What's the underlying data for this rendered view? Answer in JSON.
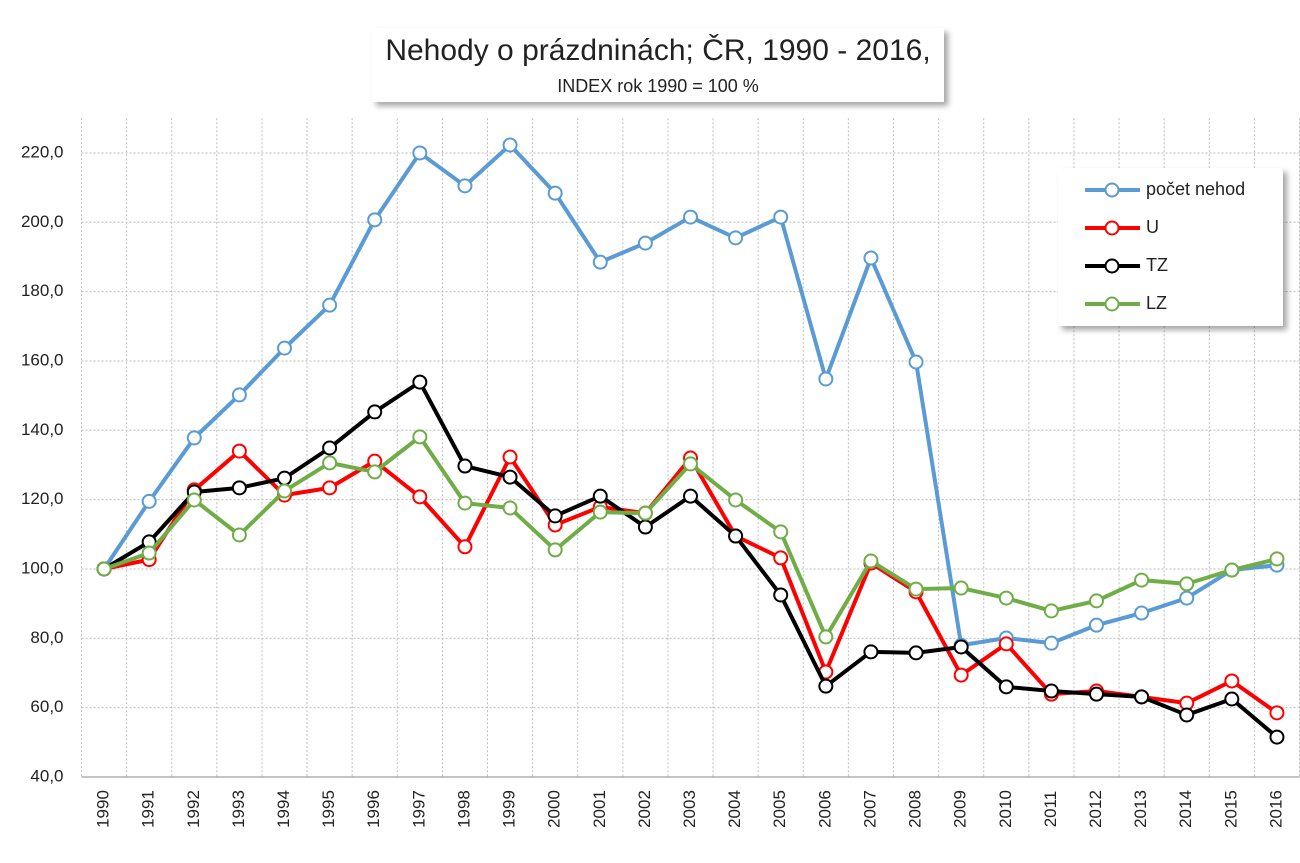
{
  "chart_data": {
    "type": "line",
    "title": "Nehody o prázdninách; ČR, 1990 - 2016,",
    "subtitle": "INDEX rok 1990 = 100 %",
    "categories": [
      "1990",
      "1991",
      "1992",
      "1993",
      "1994",
      "1995",
      "1996",
      "1997",
      "1998",
      "1999",
      "2000",
      "2001",
      "2002",
      "2003",
      "2004",
      "2005",
      "2006",
      "2007",
      "2008",
      "2009",
      "2010",
      "2011",
      "2012",
      "2013",
      "2014",
      "2015",
      "2016"
    ],
    "series": [
      {
        "name": "počet nehod",
        "color": "#5b9bd5",
        "values": [
          100,
          119.5,
          137.8,
          150.2,
          163.7,
          176.1,
          200.7,
          220,
          210.5,
          222.3,
          208.4,
          188.5,
          194,
          201.5,
          195.5,
          201.5,
          154.8,
          189.7,
          159.7,
          78,
          80.1,
          78.6,
          83.8,
          87.3,
          91.6,
          99.7,
          101.1
        ]
      },
      {
        "name": "U",
        "color": "#ff0000",
        "values": [
          100,
          102.7,
          122.8,
          134,
          121.3,
          123.4,
          131.1,
          120.8,
          106.4,
          132.3,
          112.7,
          117.9,
          116.1,
          132,
          109.5,
          103.2,
          70.3,
          101.7,
          93.4,
          69.4,
          78.4,
          63.9,
          64.8,
          63.1,
          61.3,
          67.7,
          58.5
        ]
      },
      {
        "name": "TZ",
        "color": "#000000",
        "values": [
          100,
          107.8,
          122.2,
          123.4,
          126.2,
          134.9,
          145.3,
          153.9,
          129.7,
          126.5,
          115.3,
          121,
          112.1,
          121,
          109.5,
          92.5,
          66.2,
          76.1,
          75.8,
          77.5,
          66,
          64.8,
          63.9,
          63.1,
          57.9,
          62.5,
          51.5
        ]
      },
      {
        "name": "LZ",
        "color": "#70ad47",
        "values": [
          100,
          104.6,
          119.9,
          109.8,
          122.5,
          130.6,
          128,
          138.1,
          119,
          117.6,
          105.5,
          116.4,
          116.1,
          130.3,
          119.9,
          110.7,
          80.4,
          102.3,
          94.2,
          94.5,
          91.6,
          87.9,
          90.8,
          96.8,
          95.7,
          99.7,
          102.9
        ]
      }
    ],
    "ylim": [
      40,
      230
    ],
    "yticks": [
      {
        "value": 40,
        "label": "40,0"
      },
      {
        "value": 60,
        "label": "60,0"
      },
      {
        "value": 80,
        "label": "80,0"
      },
      {
        "value": 100,
        "label": "100,0"
      },
      {
        "value": 120,
        "label": "120,0"
      },
      {
        "value": 140,
        "label": "140,0"
      },
      {
        "value": 160,
        "label": "160,0"
      },
      {
        "value": 180,
        "label": "180,0"
      },
      {
        "value": 200,
        "label": "200,0"
      },
      {
        "value": 220,
        "label": "220,0"
      }
    ],
    "grid": true,
    "legend": "upper right"
  }
}
